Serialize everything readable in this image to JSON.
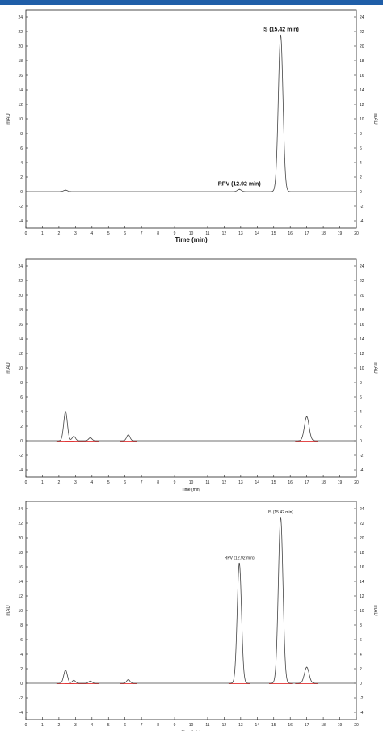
{
  "colors": {
    "header_bar": "#1f5ea8",
    "trace": "#444444",
    "baseline": "#e03030",
    "frame": "#222222"
  },
  "chart_data": [
    {
      "type": "line",
      "title": "",
      "xlabel": "Time (min)",
      "ylabel": "mAU",
      "ylabel_right": "mAU",
      "xlim": [
        0,
        20
      ],
      "ylim": [
        -5,
        25
      ],
      "x_ticks": [
        "0",
        "1",
        "2",
        "3",
        "4",
        "5",
        "6",
        "7",
        "8",
        "9",
        "10",
        "11",
        "12",
        "13",
        "14",
        "15",
        "16",
        "17",
        "18",
        "19",
        "20"
      ],
      "y_ticks": [
        "-4",
        "-2",
        "0",
        "2",
        "4",
        "6",
        "8",
        "10",
        "12",
        "14",
        "16",
        "18",
        "20",
        "22",
        "24"
      ],
      "grid": false,
      "series": [
        {
          "peaks": [
            {
              "x": 2.4,
              "y": 0.2,
              "width": 0.12
            },
            {
              "x": 12.92,
              "y": 0.3,
              "width": 0.12
            },
            {
              "x": 15.42,
              "y": 21.5,
              "width": 0.14
            }
          ]
        }
      ],
      "annotations": [
        {
          "text": "RPV (12.92 min)",
          "x": 12.92,
          "y": 0.3
        },
        {
          "text": "IS (15.42 min)",
          "x": 15.42,
          "y": 21.5
        }
      ]
    },
    {
      "type": "line",
      "title": "",
      "xlabel": "Time (min)",
      "ylabel": "mAU",
      "ylabel_right": "mAU",
      "xlim": [
        0,
        20
      ],
      "ylim": [
        -5,
        25
      ],
      "x_ticks": [
        "0",
        "1",
        "2",
        "3",
        "4",
        "5",
        "6",
        "7",
        "8",
        "9",
        "10",
        "11",
        "12",
        "13",
        "14",
        "15",
        "16",
        "17",
        "18",
        "19",
        "20"
      ],
      "y_ticks": [
        "-4",
        "-2",
        "0",
        "2",
        "4",
        "6",
        "8",
        "10",
        "12",
        "14",
        "16",
        "18",
        "20",
        "22",
        "24"
      ],
      "grid": false,
      "series": [
        {
          "peaks": [
            {
              "x": 2.4,
              "y": 4.0,
              "width": 0.11
            },
            {
              "x": 2.9,
              "y": 0.6,
              "width": 0.1
            },
            {
              "x": 3.9,
              "y": 0.4,
              "width": 0.1
            },
            {
              "x": 6.2,
              "y": 0.8,
              "width": 0.1
            },
            {
              "x": 17.0,
              "y": 3.3,
              "width": 0.14
            }
          ]
        }
      ],
      "annotations": []
    },
    {
      "type": "line",
      "title": "",
      "xlabel": "Time (min)",
      "ylabel": "mAU",
      "ylabel_right": "mAU",
      "xlim": [
        0,
        20
      ],
      "ylim": [
        -5,
        25
      ],
      "x_ticks": [
        "0",
        "1",
        "2",
        "3",
        "4",
        "5",
        "6",
        "7",
        "8",
        "9",
        "10",
        "11",
        "12",
        "13",
        "14",
        "15",
        "16",
        "17",
        "18",
        "19",
        "20"
      ],
      "y_ticks": [
        "-4",
        "-2",
        "0",
        "2",
        "4",
        "6",
        "8",
        "10",
        "12",
        "14",
        "16",
        "18",
        "20",
        "22",
        "24"
      ],
      "grid": false,
      "series": [
        {
          "peaks": [
            {
              "x": 2.4,
              "y": 1.8,
              "width": 0.11
            },
            {
              "x": 2.9,
              "y": 0.4,
              "width": 0.1
            },
            {
              "x": 3.9,
              "y": 0.3,
              "width": 0.1
            },
            {
              "x": 6.2,
              "y": 0.5,
              "width": 0.1
            },
            {
              "x": 12.92,
              "y": 16.5,
              "width": 0.13
            },
            {
              "x": 15.42,
              "y": 22.8,
              "width": 0.14
            },
            {
              "x": 17.0,
              "y": 2.2,
              "width": 0.14
            }
          ]
        }
      ],
      "annotations": [
        {
          "text": "RPV (12.92 min)",
          "x": 12.92,
          "y": 16.5
        },
        {
          "text": "IS (15.42 min)",
          "x": 15.42,
          "y": 22.8
        }
      ]
    }
  ]
}
